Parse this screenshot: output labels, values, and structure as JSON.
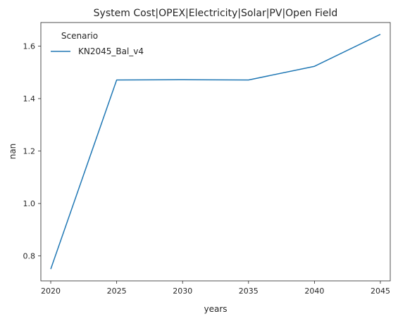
{
  "chart_data": {
    "type": "line",
    "title": "System Cost|OPEX|Electricity|Solar|PV|Open Field",
    "xlabel": "years",
    "ylabel": "nan",
    "x": [
      2020,
      2025,
      2030,
      2035,
      2040,
      2045
    ],
    "x_ticks": [
      "2020",
      "2025",
      "2030",
      "2035",
      "2040",
      "2045"
    ],
    "y_ticks": [
      0.8,
      1.0,
      1.2,
      1.4,
      1.6
    ],
    "y_tick_labels": [
      "0.8",
      "1.0",
      "1.2",
      "1.4",
      "1.6"
    ],
    "xlim": [
      2019.25,
      2045.75
    ],
    "ylim": [
      0.705,
      1.69
    ],
    "grid": false,
    "legend": {
      "title": "Scenario",
      "placement": "top-left"
    },
    "series": [
      {
        "name": "KN2045_Bal_v4",
        "color": "#1f77b4",
        "values": [
          0.75,
          1.471,
          1.472,
          1.471,
          1.523,
          1.645
        ]
      }
    ]
  }
}
